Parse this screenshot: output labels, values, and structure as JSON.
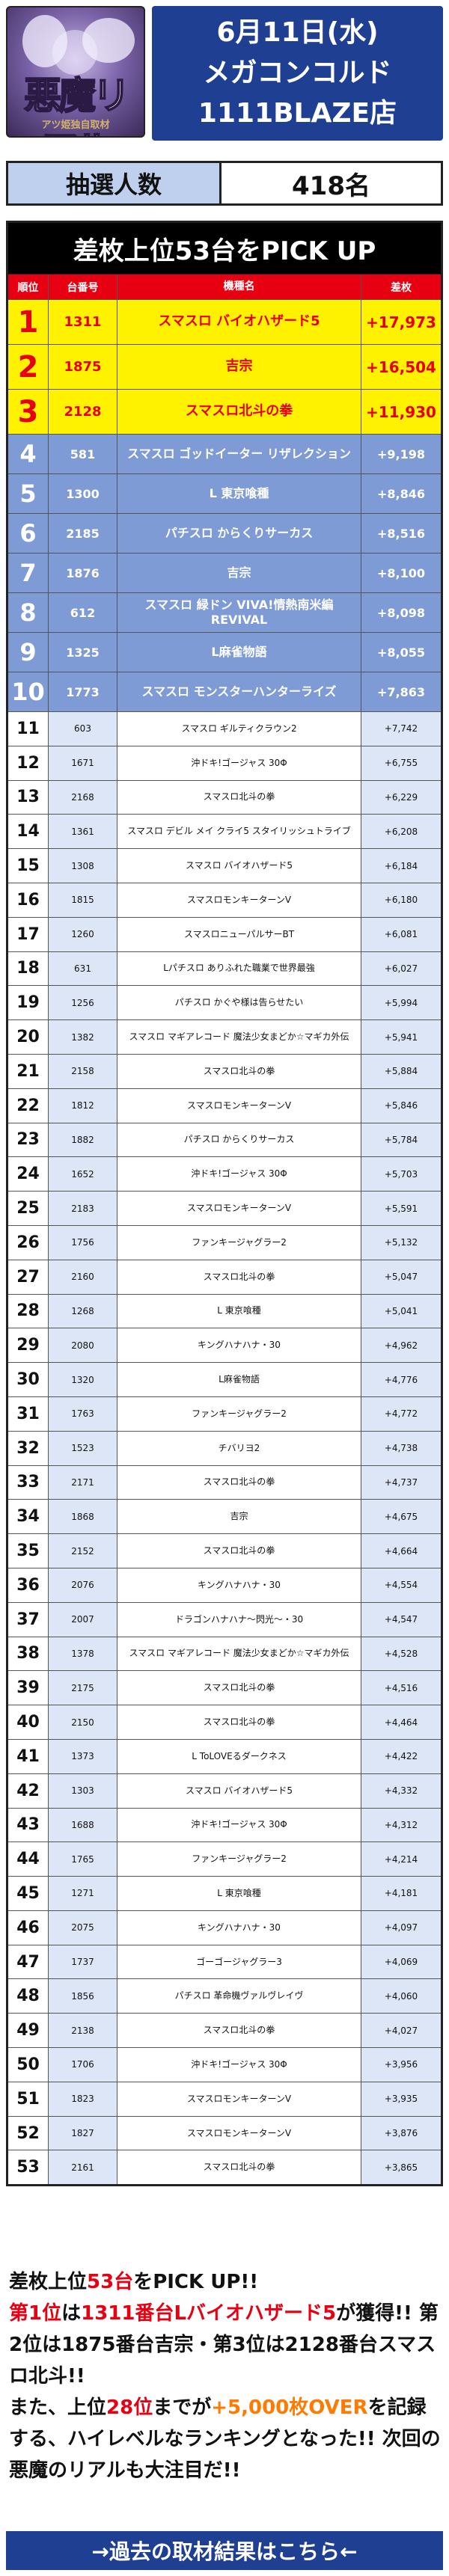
{
  "header": {
    "logo_text": "悪魔リアル",
    "logo_sub": "アツ姫独自取材",
    "date": "6月11日(水)",
    "event": "メガコンコルド",
    "store": "1111BLAZE店"
  },
  "lottery": {
    "label": "抽選人数",
    "value": "418名"
  },
  "table": {
    "title": "差枚上位53台をPICK UP",
    "columns": [
      "順位",
      "台番号",
      "機種名",
      "差枚"
    ],
    "rows": [
      [
        "1",
        "1311",
        "スマスロ バイオハザード5",
        "+17,973"
      ],
      [
        "2",
        "1875",
        "吉宗",
        "+16,504"
      ],
      [
        "3",
        "2128",
        "スマスロ北斗の拳",
        "+11,930"
      ],
      [
        "4",
        "581",
        "スマスロ ゴッドイーター リザレクション",
        "+9,198"
      ],
      [
        "5",
        "1300",
        "L 東京喰種",
        "+8,846"
      ],
      [
        "6",
        "2185",
        "パチスロ からくりサーカス",
        "+8,516"
      ],
      [
        "7",
        "1876",
        "吉宗",
        "+8,100"
      ],
      [
        "8",
        "612",
        "スマスロ 緑ドン VIVA!情熱南米編 REVIVAL",
        "+8,098"
      ],
      [
        "9",
        "1325",
        "L麻雀物語",
        "+8,055"
      ],
      [
        "10",
        "1773",
        "スマスロ モンスターハンターライズ",
        "+7,863"
      ],
      [
        "11",
        "603",
        "スマスロ ギルティクラウン2",
        "+7,742"
      ],
      [
        "12",
        "1671",
        "沖ドキ!ゴージャス 30Φ",
        "+6,755"
      ],
      [
        "13",
        "2168",
        "スマスロ北斗の拳",
        "+6,229"
      ],
      [
        "14",
        "1361",
        "スマスロ デビル メイ クライ5 スタイリッシュトライブ",
        "+6,208"
      ],
      [
        "15",
        "1308",
        "スマスロ バイオハザード5",
        "+6,184"
      ],
      [
        "16",
        "1815",
        "スマスロモンキーターンV",
        "+6,180"
      ],
      [
        "17",
        "1260",
        "スマスロニューパルサーBT",
        "+6,081"
      ],
      [
        "18",
        "631",
        "Lパチスロ ありふれた職業で世界最強",
        "+6,027"
      ],
      [
        "19",
        "1256",
        "パチスロ かぐや様は告らせたい",
        "+5,994"
      ],
      [
        "20",
        "1382",
        "スマスロ マギアレコード 魔法少女まどか☆マギカ外伝",
        "+5,941"
      ],
      [
        "21",
        "2158",
        "スマスロ北斗の拳",
        "+5,884"
      ],
      [
        "22",
        "1812",
        "スマスロモンキーターンV",
        "+5,846"
      ],
      [
        "23",
        "1882",
        "パチスロ からくりサーカス",
        "+5,784"
      ],
      [
        "24",
        "1652",
        "沖ドキ!ゴージャス 30Φ",
        "+5,703"
      ],
      [
        "25",
        "2183",
        "スマスロモンキーターンV",
        "+5,591"
      ],
      [
        "26",
        "1756",
        "ファンキージャグラー2",
        "+5,132"
      ],
      [
        "27",
        "2160",
        "スマスロ北斗の拳",
        "+5,047"
      ],
      [
        "28",
        "1268",
        "L 東京喰種",
        "+5,041"
      ],
      [
        "29",
        "2080",
        "キングハナハナ・30",
        "+4,962"
      ],
      [
        "30",
        "1320",
        "L麻雀物語",
        "+4,776"
      ],
      [
        "31",
        "1763",
        "ファンキージャグラー2",
        "+4,772"
      ],
      [
        "32",
        "1523",
        "チバリヨ2",
        "+4,738"
      ],
      [
        "33",
        "2171",
        "スマスロ北斗の拳",
        "+4,737"
      ],
      [
        "34",
        "1868",
        "吉宗",
        "+4,675"
      ],
      [
        "35",
        "2152",
        "スマスロ北斗の拳",
        "+4,664"
      ],
      [
        "36",
        "2076",
        "キングハナハナ・30",
        "+4,554"
      ],
      [
        "37",
        "2007",
        "ドラゴンハナハナ〜閃光〜・30",
        "+4,547"
      ],
      [
        "38",
        "1378",
        "スマスロ マギアレコード 魔法少女まどか☆マギカ外伝",
        "+4,528"
      ],
      [
        "39",
        "2175",
        "スマスロ北斗の拳",
        "+4,516"
      ],
      [
        "40",
        "2150",
        "スマスロ北斗の拳",
        "+4,464"
      ],
      [
        "41",
        "1373",
        "L ToLOVEるダークネス",
        "+4,422"
      ],
      [
        "42",
        "1303",
        "スマスロ バイオハザード5",
        "+4,332"
      ],
      [
        "43",
        "1688",
        "沖ドキ!ゴージャス 30Φ",
        "+4,312"
      ],
      [
        "44",
        "1765",
        "ファンキージャグラー2",
        "+4,214"
      ],
      [
        "45",
        "1271",
        "L 東京喰種",
        "+4,181"
      ],
      [
        "46",
        "2075",
        "キングハナハナ・30",
        "+4,097"
      ],
      [
        "47",
        "1737",
        "ゴーゴージャグラー3",
        "+4,069"
      ],
      [
        "48",
        "1856",
        "パチスロ 革命機ヴァルヴレイヴ",
        "+4,060"
      ],
      [
        "49",
        "2138",
        "スマスロ北斗の拳",
        "+4,027"
      ],
      [
        "50",
        "1706",
        "沖ドキ!ゴージャス 30Φ",
        "+3,956"
      ],
      [
        "51",
        "1823",
        "スマスロモンキーターンV",
        "+3,935"
      ],
      [
        "52",
        "1827",
        "スマスロモンキーターンV",
        "+3,876"
      ],
      [
        "53",
        "2161",
        "スマスロ北斗の拳",
        "+3,865"
      ]
    ]
  },
  "summary": {
    "line1a": "差枚上位",
    "line1b": "53台",
    "line1c": "をPICK UP!!",
    "line2a": "第1位",
    "line2b": "は",
    "line2c": "1311番台Lバイオハザード5",
    "line2d": "が獲得!! 第2位は1875番台吉宗・第3位は2128番台スマスロ北斗!!",
    "line3a": "また、上位",
    "line3b": "28位",
    "line3c": "までが",
    "line3d": "+5,000枚OVER",
    "line3e": "を記録する、ハイレベルなランキングとなった!! 次回の悪魔のリアルも大注目だ!!"
  },
  "past_link": "→過去の取材結果はこちら←",
  "colors": {
    "navy": "#1f3f93",
    "red": "#e60012",
    "yellow": "#fff200",
    "blue_mid": "#7f9bd6",
    "light_blue": "#dde6f7"
  }
}
